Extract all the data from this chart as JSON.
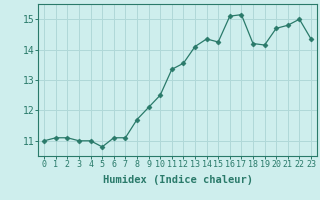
{
  "x": [
    0,
    1,
    2,
    3,
    4,
    5,
    6,
    7,
    8,
    9,
    10,
    11,
    12,
    13,
    14,
    15,
    16,
    17,
    18,
    19,
    20,
    21,
    22,
    23
  ],
  "y": [
    11.0,
    11.1,
    11.1,
    11.0,
    11.0,
    10.8,
    11.1,
    11.1,
    11.7,
    12.1,
    12.5,
    13.35,
    13.55,
    14.1,
    14.35,
    14.25,
    15.1,
    15.15,
    14.2,
    14.15,
    14.7,
    14.8,
    15.0,
    14.35
  ],
  "xlabel": "Humidex (Indice chaleur)",
  "line_color": "#2a7a6a",
  "marker": "D",
  "marker_size": 2.5,
  "bg_color": "#ceeeed",
  "grid_color": "#b0d8d8",
  "xlim": [
    -0.5,
    23.5
  ],
  "ylim": [
    10.5,
    15.5
  ],
  "yticks": [
    11,
    12,
    13,
    14,
    15
  ],
  "xticks": [
    0,
    1,
    2,
    3,
    4,
    5,
    6,
    7,
    8,
    9,
    10,
    11,
    12,
    13,
    14,
    15,
    16,
    17,
    18,
    19,
    20,
    21,
    22,
    23
  ],
  "tick_color": "#2a7a6a",
  "label_color": "#2a7a6a",
  "axis_color": "#2a7a6a",
  "tick_fontsize": 6,
  "ytick_fontsize": 7,
  "xlabel_fontsize": 7.5
}
